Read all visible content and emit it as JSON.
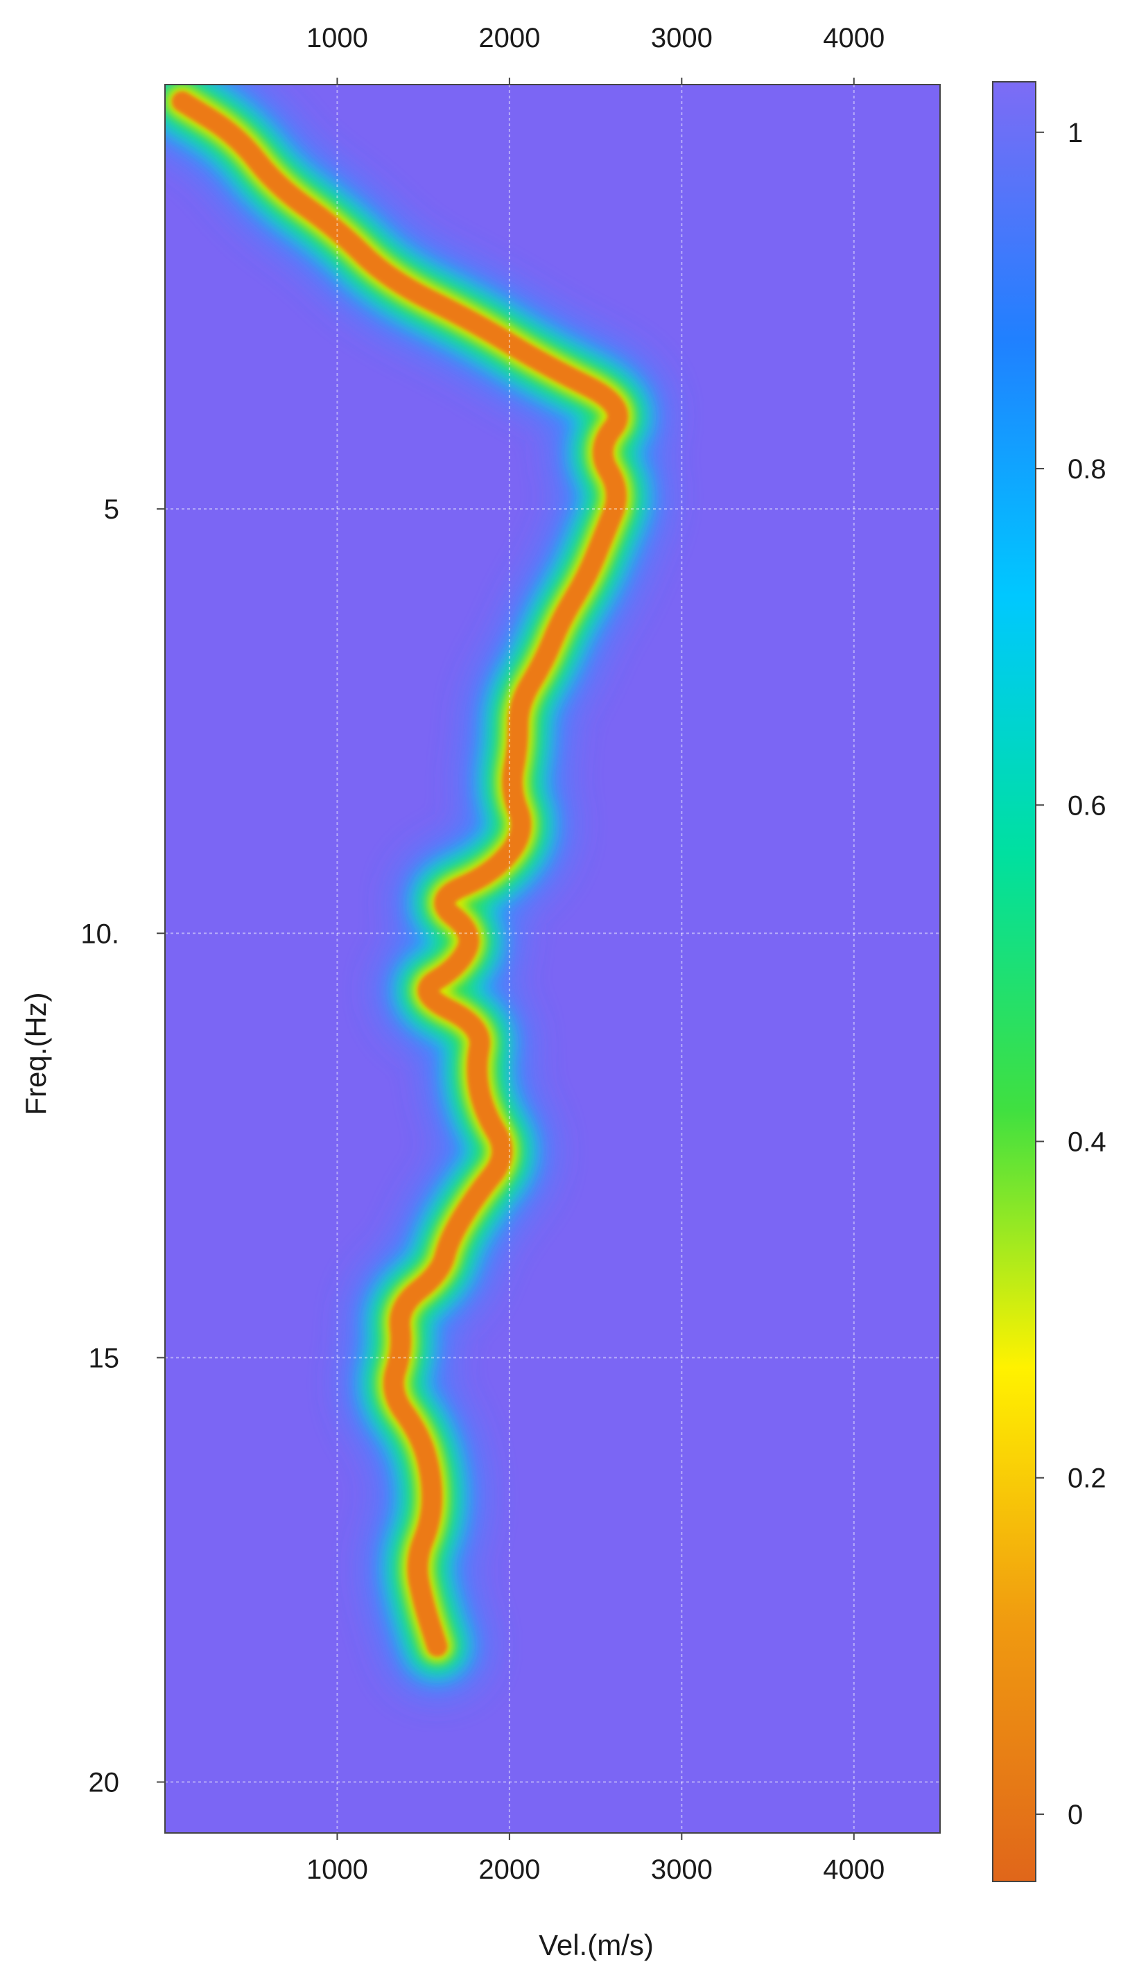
{
  "chart_data": {
    "type": "heatmap",
    "title": "",
    "xlabel": "Vel.(m/s)",
    "ylabel": "Freq.(Hz)",
    "xlim": [
      0,
      4500
    ],
    "ylim": [
      0,
      20.6
    ],
    "y_inverted": true,
    "x_ticks": [
      1000,
      2000,
      3000,
      4000
    ],
    "x_tick_labels": [
      "1000",
      "2000",
      "3000",
      "4000"
    ],
    "y_ticks": [
      5,
      10,
      15,
      20
    ],
    "y_tick_labels": [
      "5",
      "10.",
      "15",
      "20"
    ],
    "grid": true,
    "x_axis_top_labels": true,
    "colorbar": {
      "ticks": [
        1,
        0.8,
        0.6,
        0.4,
        0.2,
        0
      ],
      "tick_labels": [
        "1",
        "0.8",
        "0.6",
        "0.4",
        "0.2",
        "0"
      ],
      "range": [
        -0.04,
        1.03
      ],
      "colors": [
        "#e0661a",
        "#f09a10",
        "#fff200",
        "#40e040",
        "#00e0a0",
        "#00c8ff",
        "#2080ff",
        "#7d6cf5"
      ]
    },
    "background_value": 1,
    "ridge": {
      "description_value": 0,
      "points": [
        {
          "freq": 0.2,
          "vel": 100
        },
        {
          "freq": 0.6,
          "vel": 420
        },
        {
          "freq": 1.2,
          "vel": 650
        },
        {
          "freq": 1.7,
          "vel": 1000
        },
        {
          "freq": 2.3,
          "vel": 1300
        },
        {
          "freq": 2.8,
          "vel": 1800
        },
        {
          "freq": 3.3,
          "vel": 2200
        },
        {
          "freq": 3.8,
          "vel": 2700
        },
        {
          "freq": 4.3,
          "vel": 2500
        },
        {
          "freq": 4.8,
          "vel": 2650
        },
        {
          "freq": 5.3,
          "vel": 2550
        },
        {
          "freq": 5.8,
          "vel": 2450
        },
        {
          "freq": 6.3,
          "vel": 2300
        },
        {
          "freq": 6.8,
          "vel": 2200
        },
        {
          "freq": 7.3,
          "vel": 2050
        },
        {
          "freq": 7.8,
          "vel": 2050
        },
        {
          "freq": 8.3,
          "vel": 2000
        },
        {
          "freq": 8.8,
          "vel": 2100
        },
        {
          "freq": 9.3,
          "vel": 1900
        },
        {
          "freq": 9.6,
          "vel": 1550
        },
        {
          "freq": 10.0,
          "vel": 1800
        },
        {
          "freq": 10.4,
          "vel": 1700
        },
        {
          "freq": 10.7,
          "vel": 1450
        },
        {
          "freq": 11.1,
          "vel": 1850
        },
        {
          "freq": 11.6,
          "vel": 1800
        },
        {
          "freq": 12.1,
          "vel": 1850
        },
        {
          "freq": 12.6,
          "vel": 2000
        },
        {
          "freq": 13.1,
          "vel": 1800
        },
        {
          "freq": 13.6,
          "vel": 1650
        },
        {
          "freq": 14.0,
          "vel": 1600
        },
        {
          "freq": 14.4,
          "vel": 1350
        },
        {
          "freq": 14.9,
          "vel": 1380
        },
        {
          "freq": 15.4,
          "vel": 1300
        },
        {
          "freq": 15.9,
          "vel": 1480
        },
        {
          "freq": 16.4,
          "vel": 1550
        },
        {
          "freq": 16.9,
          "vel": 1550
        },
        {
          "freq": 17.4,
          "vel": 1450
        },
        {
          "freq": 17.9,
          "vel": 1500
        },
        {
          "freq": 18.4,
          "vel": 1580
        }
      ]
    }
  }
}
